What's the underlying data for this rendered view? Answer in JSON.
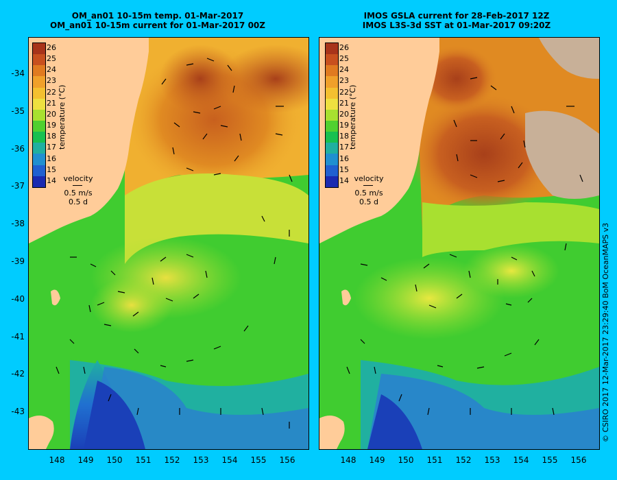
{
  "left_panel": {
    "title_line1": "OM_an01 10-15m temp. 01-Mar-2017",
    "title_line2": "OM_an01 10-15m current for 01-Mar-2017 00Z"
  },
  "right_panel": {
    "title_line1": "IMOS GSLA current for 28-Feb-2017 12Z",
    "title_line2": "IMOS L3S-3d SST at 01-Mar-2017 09:20Z"
  },
  "colorbar": {
    "title": "temperature (°C)",
    "labels": [
      "26",
      "25",
      "24",
      "23",
      "22",
      "21",
      "20",
      "19",
      "18",
      "17",
      "16",
      "15",
      "14"
    ],
    "colors": [
      "#a8341a",
      "#c8501e",
      "#e07a20",
      "#f0a02a",
      "#f4c030",
      "#eee040",
      "#a8e030",
      "#50d030",
      "#18c050",
      "#20b0a0",
      "#2090d0",
      "#2060d0",
      "#1a2ab0"
    ]
  },
  "velocity_legend": {
    "label": "velocity",
    "speed": "0.5 m/s",
    "duration": "0.5 d"
  },
  "lat_ticks": [
    "-34",
    "-35",
    "-36",
    "-37",
    "-38",
    "-39",
    "-40",
    "-41",
    "-42",
    "-43"
  ],
  "lon_ticks": [
    "148",
    "149",
    "150",
    "151",
    "152",
    "153",
    "154",
    "155",
    "156"
  ],
  "credit": "© CSIRO 2017  12-Mar-2017 23:29:40 BoM OceanMAPS v3",
  "colors": {
    "background": "#00ccff",
    "land": "#ffcc99",
    "missing": "#c8b098"
  }
}
